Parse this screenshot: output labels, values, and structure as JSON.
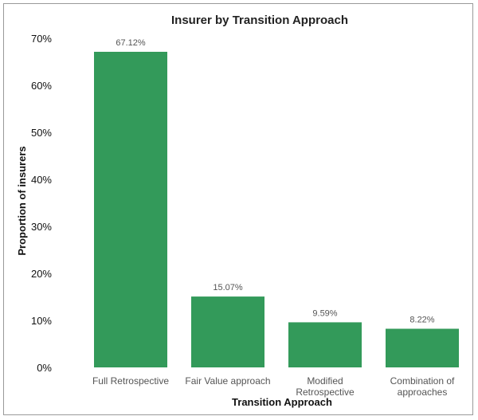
{
  "chart_data": {
    "type": "bar",
    "title": "Insurer by Transition Approach",
    "xlabel": "Transition Approach",
    "ylabel": "Proportion of insurers",
    "categories": [
      "Full Retrospective",
      "Fair Value approach",
      "Modified Retrospective",
      "Combination of approaches"
    ],
    "category_lines": [
      [
        "Full Retrospective"
      ],
      [
        "Fair Value approach"
      ],
      [
        "Modified",
        "Retrospective"
      ],
      [
        "Combination of",
        "approaches"
      ]
    ],
    "values": [
      67.12,
      15.07,
      9.59,
      8.22
    ],
    "data_labels": [
      "67.12%",
      "15.07%",
      "9.59%",
      "8.22%"
    ],
    "ylim": [
      0,
      70
    ],
    "yticks": [
      0,
      10,
      20,
      30,
      40,
      50,
      60,
      70
    ],
    "ytick_labels": [
      "0%",
      "10%",
      "20%",
      "30%",
      "40%",
      "50%",
      "60%",
      "70%"
    ],
    "grid": false,
    "bar_color": "#339a5a"
  }
}
